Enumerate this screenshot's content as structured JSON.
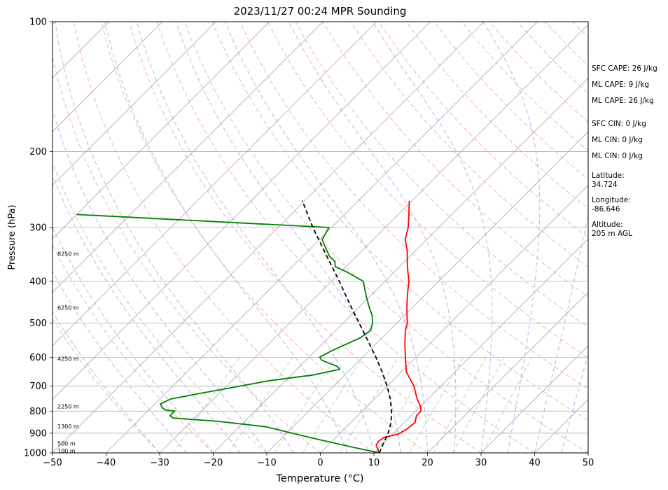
{
  "chart_data": {
    "type": "line",
    "title": "2023/11/27 00:24 MPR Sounding",
    "xlabel": "Temperature (°C)",
    "ylabel": "Pressure (hPa)",
    "xlim": [
      -50,
      50
    ],
    "ylim": [
      1000,
      100
    ],
    "y_scale": "log",
    "skew_deg": 45,
    "grid": true,
    "x_ticks": [
      -50,
      -40,
      -30,
      -20,
      -10,
      0,
      10,
      20,
      30,
      40,
      50
    ],
    "x_tick_labels": [
      "−50",
      "−40",
      "−30",
      "−20",
      "−10",
      "0",
      "10",
      "20",
      "30",
      "40",
      "50"
    ],
    "y_ticks": [
      1000,
      900,
      800,
      700,
      600,
      500,
      400,
      300,
      200,
      100
    ],
    "y_tick_labels": [
      "1000",
      "900",
      "800",
      "700",
      "600",
      "500",
      "400",
      "300",
      "200",
      "100"
    ],
    "height_labels": [
      {
        "label": "100 m",
        "p": 988
      },
      {
        "label": "500 m",
        "p": 950
      },
      {
        "label": "1300 m",
        "p": 868
      },
      {
        "label": "2250 m",
        "p": 780
      },
      {
        "label": "4250 m",
        "p": 605
      },
      {
        "label": "6250 m",
        "p": 460
      },
      {
        "label": "8250 m",
        "p": 345
      }
    ],
    "series": [
      {
        "name": "",
        "color": "#ff0000",
        "values": [
          [
            1000,
            11
          ],
          [
            980,
            10
          ],
          [
            960,
            9
          ],
          [
            940,
            8.7
          ],
          [
            920,
            9
          ],
          [
            905,
            11
          ],
          [
            880,
            11.7
          ],
          [
            850,
            12
          ],
          [
            820,
            11
          ],
          [
            800,
            11
          ],
          [
            780,
            10
          ],
          [
            750,
            8
          ],
          [
            700,
            5
          ],
          [
            650,
            1
          ],
          [
            600,
            -2
          ],
          [
            560,
            -4.5
          ],
          [
            520,
            -7
          ],
          [
            500,
            -8
          ],
          [
            480,
            -9.5
          ],
          [
            460,
            -11
          ],
          [
            440,
            -12.5
          ],
          [
            420,
            -14
          ],
          [
            400,
            -15.5
          ],
          [
            380,
            -17.5
          ],
          [
            360,
            -19.5
          ],
          [
            340,
            -21.5
          ],
          [
            320,
            -24
          ],
          [
            300,
            -25.7
          ],
          [
            280,
            -28
          ],
          [
            260,
            -30.5
          ]
        ]
      },
      {
        "name": "",
        "color": "#008000",
        "values": [
          [
            1000,
            11
          ],
          [
            990,
            9
          ],
          [
            970,
            5
          ],
          [
            950,
            1
          ],
          [
            930,
            -3
          ],
          [
            910,
            -7
          ],
          [
            890,
            -11
          ],
          [
            870,
            -15
          ],
          [
            845,
            -25
          ],
          [
            830,
            -34
          ],
          [
            820,
            -35
          ],
          [
            800,
            -35
          ],
          [
            795,
            -37
          ],
          [
            785,
            -38
          ],
          [
            770,
            -39
          ],
          [
            750,
            -38
          ],
          [
            730,
            -34
          ],
          [
            700,
            -27.5
          ],
          [
            680,
            -23
          ],
          [
            660,
            -16
          ],
          [
            640,
            -12
          ],
          [
            630,
            -13
          ],
          [
            610,
            -17
          ],
          [
            600,
            -18
          ],
          [
            580,
            -17
          ],
          [
            560,
            -15.5
          ],
          [
            540,
            -14
          ],
          [
            520,
            -13.5
          ],
          [
            500,
            -14.5
          ],
          [
            480,
            -16
          ],
          [
            460,
            -18
          ],
          [
            440,
            -20
          ],
          [
            420,
            -22
          ],
          [
            400,
            -24
          ],
          [
            380,
            -29
          ],
          [
            370,
            -32
          ],
          [
            360,
            -33
          ],
          [
            350,
            -35
          ],
          [
            330,
            -38
          ],
          [
            320,
            -39.5
          ],
          [
            300,
            -40.5
          ],
          [
            292,
            -60
          ],
          [
            280,
            -90
          ]
        ]
      },
      {
        "name": "",
        "color": "#000000",
        "dashed": true,
        "values": [
          [
            1000,
            11
          ],
          [
            950,
            10
          ],
          [
            900,
            9
          ],
          [
            850,
            7.5
          ],
          [
            800,
            5.5
          ],
          [
            750,
            3
          ],
          [
            700,
            0
          ],
          [
            650,
            -3.5
          ],
          [
            600,
            -7.5
          ],
          [
            550,
            -12
          ],
          [
            500,
            -17
          ],
          [
            450,
            -22.5
          ],
          [
            400,
            -28.5
          ],
          [
            350,
            -35.5
          ],
          [
            300,
            -43.5
          ],
          [
            260,
            -50.5
          ]
        ]
      }
    ]
  },
  "stats": {
    "sfc_cape": "SFC CAPE: 26 J/kg",
    "ml_cape_1": "ML CAPE: 9 J/kg",
    "ml_cape_2": "ML CAPE: 26 J/kg",
    "sfc_cin": "SFC CIN: 0 J/kg",
    "ml_cin_1": "ML CIN: 0 J/kg",
    "ml_cin_2": "ML CIN: 0 J/kg",
    "latitude_label": "Latitude:",
    "latitude_value": "34.724",
    "longitude_label": "Longitude:",
    "longitude_value": "-86.646",
    "altitude_label": "Altitude:",
    "altitude_value": "205 m AGL"
  }
}
